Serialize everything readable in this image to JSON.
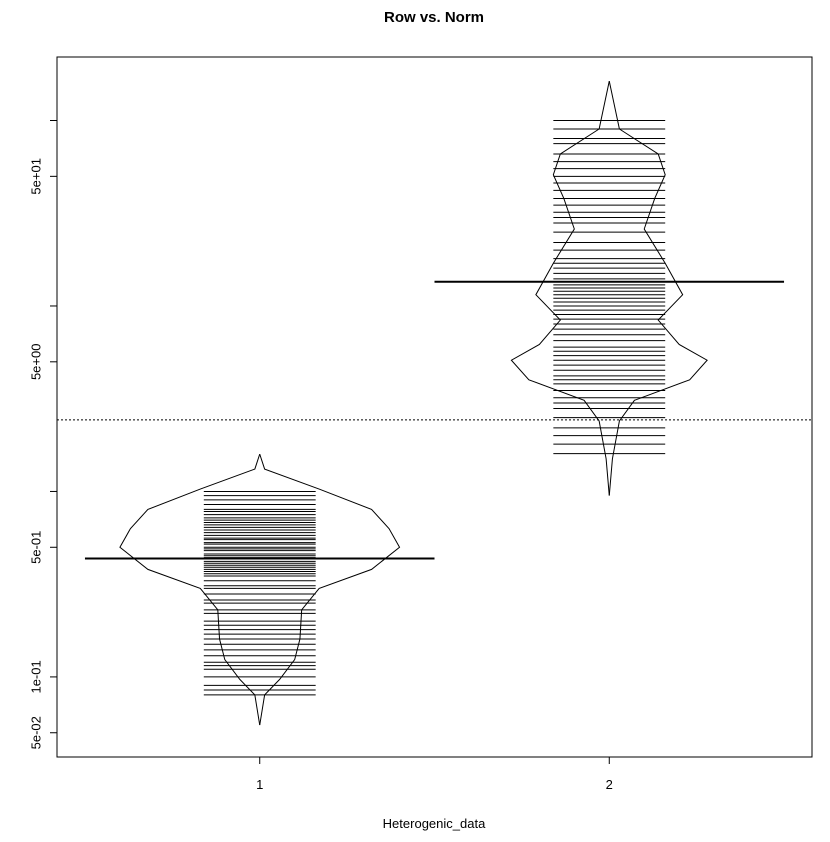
{
  "chart_data": {
    "type": "beanplot",
    "title": "Row vs. Norm",
    "xlabel": "Heterogenic_data",
    "categories": [
      "1",
      "2"
    ],
    "log_y": true,
    "ylim": [
      0.037,
      220
    ],
    "xlim": [
      0.42,
      2.58
    ],
    "yticks": [
      {
        "value": 0.05,
        "label": "5e-02"
      },
      {
        "value": 0.1,
        "label": "1e-01"
      },
      {
        "value": 0.5,
        "label": "5e-01"
      },
      {
        "value": 5,
        "label": "5e+00"
      },
      {
        "value": 50,
        "label": "5e+01"
      }
    ],
    "yticks_unlabeled": [
      1,
      10,
      100
    ],
    "overall_mean": 2.43,
    "color": "#000000",
    "groups": [
      {
        "mean": 0.435,
        "density_y": [
          1.59,
          1.32,
          1.03,
          0.8,
          0.63,
          0.5,
          0.38,
          0.3,
          0.23,
          0.16,
          0.124,
          0.097,
          0.08,
          0.055
        ],
        "density_width": [
          0,
          0.014,
          0.17,
          0.32,
          0.37,
          0.4,
          0.32,
          0.17,
          0.12,
          0.115,
          0.1,
          0.057,
          0.014,
          0
        ],
        "observations": [
          1.0,
          0.95,
          0.9,
          0.85,
          0.8,
          0.78,
          0.75,
          0.72,
          0.7,
          0.68,
          0.66,
          0.64,
          0.62,
          0.6,
          0.58,
          0.56,
          0.55,
          0.53,
          0.52,
          0.5,
          0.49,
          0.48,
          0.46,
          0.45,
          0.44,
          0.42,
          0.41,
          0.4,
          0.39,
          0.38,
          0.37,
          0.36,
          0.35,
          0.33,
          0.31,
          0.3,
          0.28,
          0.26,
          0.25,
          0.23,
          0.22,
          0.2,
          0.19,
          0.18,
          0.17,
          0.16,
          0.15,
          0.14,
          0.13,
          0.12,
          0.115,
          0.11,
          0.1,
          0.09,
          0.085,
          0.08
        ]
      },
      {
        "mean": 13.5,
        "density_y": [
          163,
          90,
          66,
          51,
          38,
          26,
          17,
          11.5,
          8.4,
          6.2,
          5.1,
          4.0,
          3.1,
          2.4,
          1.5,
          0.95
        ],
        "density_width": [
          0,
          0.029,
          0.14,
          0.16,
          0.13,
          0.1,
          0.16,
          0.21,
          0.14,
          0.2,
          0.28,
          0.23,
          0.072,
          0.029,
          0.009,
          0
        ],
        "observations": [
          100,
          90,
          80,
          75,
          66,
          60,
          55,
          50,
          46,
          42,
          38,
          35,
          32,
          30,
          28,
          25,
          22,
          20,
          18,
          17,
          16,
          15,
          14,
          13,
          12.5,
          12,
          11.5,
          11,
          10.5,
          10,
          9.5,
          9,
          8.5,
          8,
          7.5,
          7,
          6.5,
          6,
          5.7,
          5.4,
          5.1,
          4.8,
          4.5,
          4.2,
          4,
          3.8,
          3.5,
          3.2,
          3,
          2.8,
          2.5,
          2.2,
          2,
          1.8,
          1.6
        ]
      }
    ]
  }
}
